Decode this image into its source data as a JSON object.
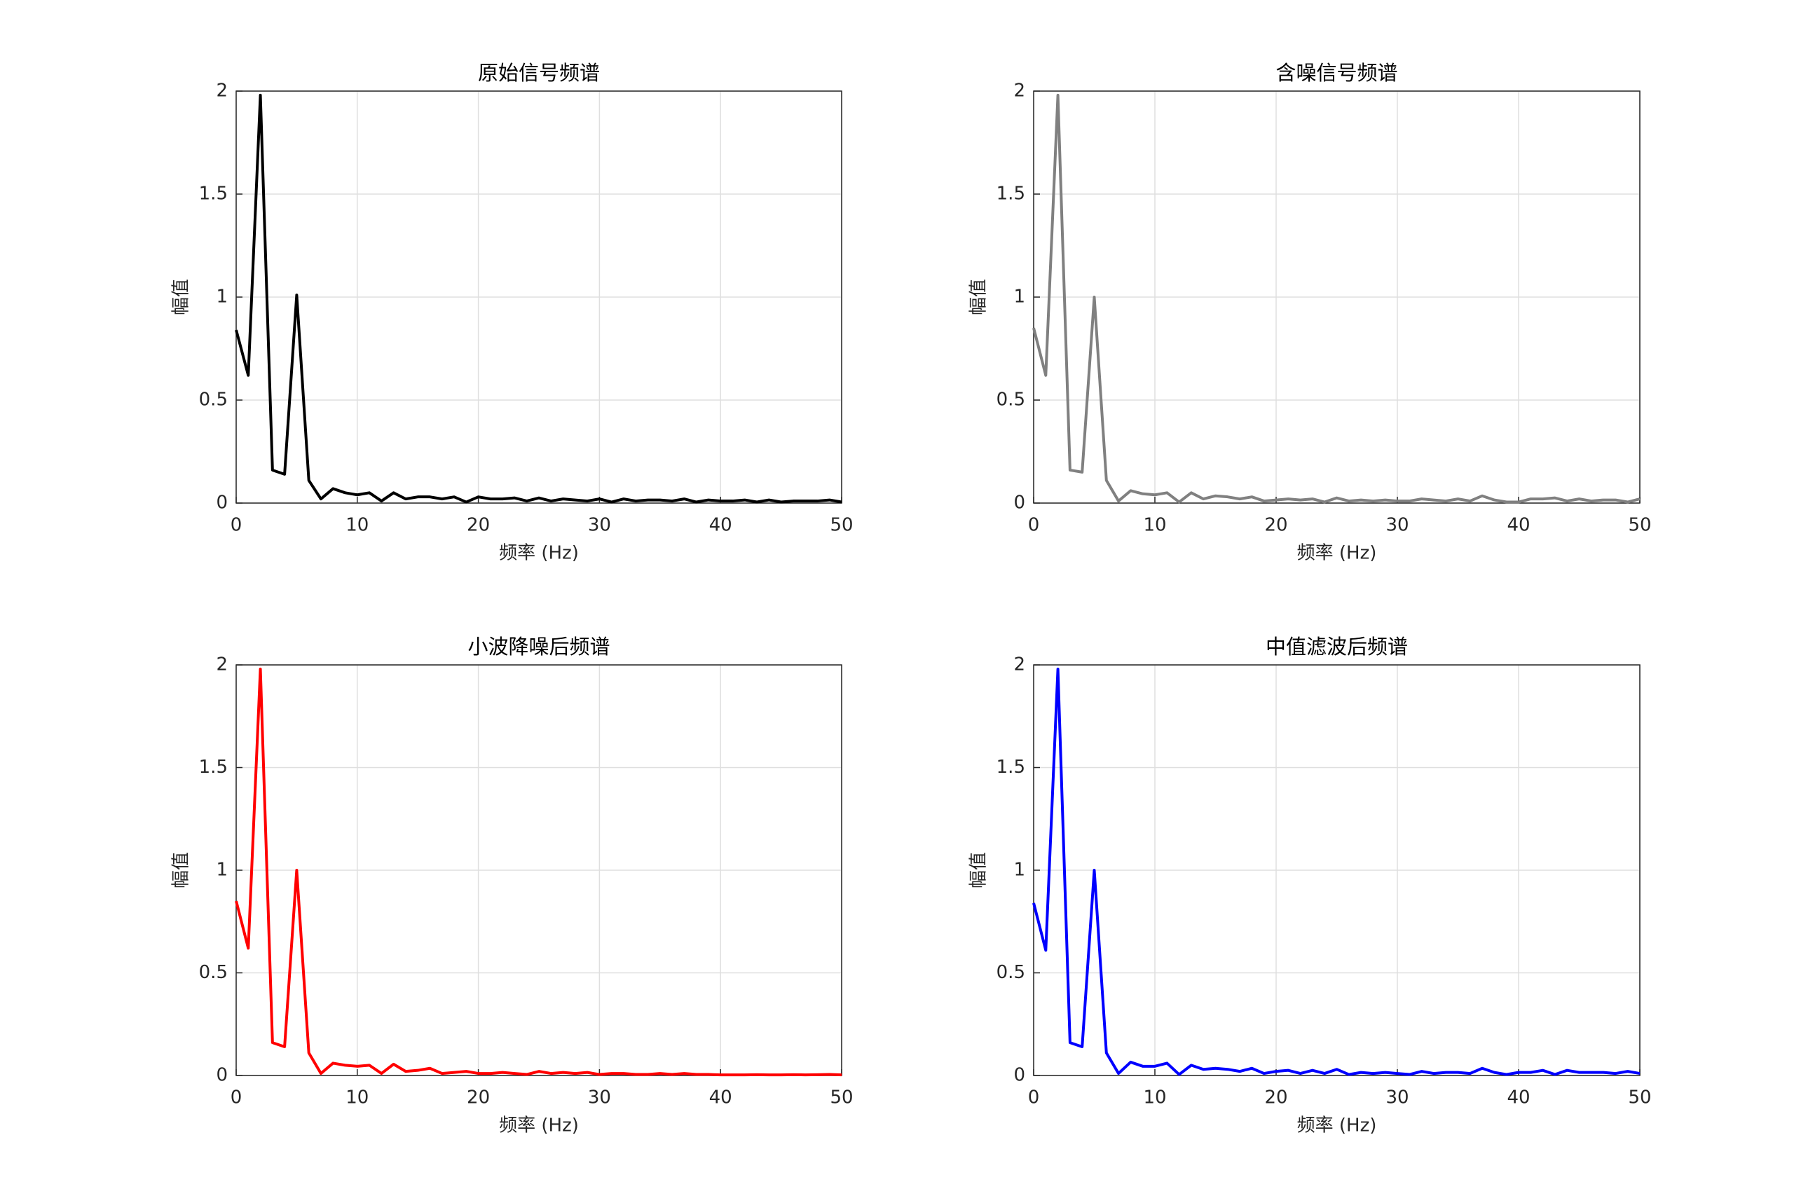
{
  "chart_data": [
    {
      "type": "line",
      "title": "原始信号频谱",
      "xlabel": "频率 (Hz)",
      "ylabel": "幅值",
      "color": "#000000",
      "x": [
        0,
        1,
        2,
        3,
        4,
        5,
        6,
        7,
        8,
        9,
        10,
        11,
        12,
        13,
        14,
        15,
        16,
        17,
        18,
        19,
        20,
        21,
        22,
        23,
        24,
        25,
        26,
        27,
        28,
        29,
        30,
        31,
        32,
        33,
        34,
        35,
        36,
        37,
        38,
        39,
        40,
        41,
        42,
        43,
        44,
        45,
        46,
        47,
        48,
        49,
        50
      ],
      "values": [
        0.84,
        0.62,
        1.98,
        0.16,
        0.14,
        1.01,
        0.11,
        0.02,
        0.07,
        0.05,
        0.04,
        0.05,
        0.01,
        0.05,
        0.02,
        0.03,
        0.03,
        0.02,
        0.03,
        0.005,
        0.03,
        0.02,
        0.02,
        0.025,
        0.01,
        0.025,
        0.01,
        0.02,
        0.015,
        0.01,
        0.02,
        0.005,
        0.02,
        0.01,
        0.015,
        0.015,
        0.01,
        0.02,
        0.005,
        0.015,
        0.01,
        0.01,
        0.015,
        0.005,
        0.015,
        0.005,
        0.01,
        0.01,
        0.01,
        0.015,
        0.005
      ],
      "xlim": [
        0,
        50
      ],
      "ylim": [
        0,
        2
      ],
      "xticks": [
        0,
        10,
        20,
        30,
        40,
        50
      ],
      "yticks": [
        0,
        0.5,
        1,
        1.5,
        2
      ],
      "grid": true
    },
    {
      "type": "line",
      "title": "含噪信号频谱",
      "xlabel": "频率 (Hz)",
      "ylabel": "幅值",
      "color": "#808080",
      "x": [
        0,
        1,
        2,
        3,
        4,
        5,
        6,
        7,
        8,
        9,
        10,
        11,
        12,
        13,
        14,
        15,
        16,
        17,
        18,
        19,
        20,
        21,
        22,
        23,
        24,
        25,
        26,
        27,
        28,
        29,
        30,
        31,
        32,
        33,
        34,
        35,
        36,
        37,
        38,
        39,
        40,
        41,
        42,
        43,
        44,
        45,
        46,
        47,
        48,
        49,
        50
      ],
      "values": [
        0.85,
        0.62,
        1.98,
        0.16,
        0.15,
        1.0,
        0.11,
        0.01,
        0.06,
        0.045,
        0.04,
        0.05,
        0.005,
        0.05,
        0.02,
        0.035,
        0.03,
        0.02,
        0.03,
        0.01,
        0.015,
        0.02,
        0.015,
        0.02,
        0.005,
        0.025,
        0.01,
        0.015,
        0.01,
        0.015,
        0.01,
        0.01,
        0.02,
        0.015,
        0.01,
        0.02,
        0.01,
        0.035,
        0.015,
        0.005,
        0.005,
        0.02,
        0.02,
        0.025,
        0.01,
        0.02,
        0.01,
        0.015,
        0.015,
        0.005,
        0.02
      ],
      "xlim": [
        0,
        50
      ],
      "ylim": [
        0,
        2
      ],
      "xticks": [
        0,
        10,
        20,
        30,
        40,
        50
      ],
      "yticks": [
        0,
        0.5,
        1,
        1.5,
        2
      ],
      "grid": true
    },
    {
      "type": "line",
      "title": "小波降噪后频谱",
      "xlabel": "频率 (Hz)",
      "ylabel": "幅值",
      "color": "#ff0000",
      "x": [
        0,
        1,
        2,
        3,
        4,
        5,
        6,
        7,
        8,
        9,
        10,
        11,
        12,
        13,
        14,
        15,
        16,
        17,
        18,
        19,
        20,
        21,
        22,
        23,
        24,
        25,
        26,
        27,
        28,
        29,
        30,
        31,
        32,
        33,
        34,
        35,
        36,
        37,
        38,
        39,
        40,
        41,
        42,
        43,
        44,
        45,
        46,
        47,
        48,
        49,
        50
      ],
      "values": [
        0.85,
        0.62,
        1.98,
        0.16,
        0.14,
        1.0,
        0.11,
        0.01,
        0.06,
        0.05,
        0.045,
        0.05,
        0.01,
        0.055,
        0.02,
        0.025,
        0.035,
        0.01,
        0.015,
        0.02,
        0.01,
        0.01,
        0.015,
        0.01,
        0.005,
        0.02,
        0.01,
        0.015,
        0.01,
        0.015,
        0.005,
        0.01,
        0.01,
        0.005,
        0.005,
        0.01,
        0.005,
        0.01,
        0.005,
        0.005,
        0.003,
        0.003,
        0.003,
        0.004,
        0.003,
        0.003,
        0.004,
        0.003,
        0.004,
        0.005,
        0.003
      ],
      "xlim": [
        0,
        50
      ],
      "ylim": [
        0,
        2
      ],
      "xticks": [
        0,
        10,
        20,
        30,
        40,
        50
      ],
      "yticks": [
        0,
        0.5,
        1,
        1.5,
        2
      ],
      "grid": true
    },
    {
      "type": "line",
      "title": "中值滤波后频谱",
      "xlabel": "频率 (Hz)",
      "ylabel": "幅值",
      "color": "#0000ff",
      "x": [
        0,
        1,
        2,
        3,
        4,
        5,
        6,
        7,
        8,
        9,
        10,
        11,
        12,
        13,
        14,
        15,
        16,
        17,
        18,
        19,
        20,
        21,
        22,
        23,
        24,
        25,
        26,
        27,
        28,
        29,
        30,
        31,
        32,
        33,
        34,
        35,
        36,
        37,
        38,
        39,
        40,
        41,
        42,
        43,
        44,
        45,
        46,
        47,
        48,
        49,
        50
      ],
      "values": [
        0.84,
        0.61,
        1.98,
        0.16,
        0.14,
        1.0,
        0.11,
        0.01,
        0.065,
        0.045,
        0.045,
        0.06,
        0.005,
        0.05,
        0.03,
        0.035,
        0.03,
        0.02,
        0.035,
        0.01,
        0.02,
        0.025,
        0.01,
        0.025,
        0.01,
        0.03,
        0.005,
        0.015,
        0.01,
        0.015,
        0.01,
        0.005,
        0.02,
        0.01,
        0.015,
        0.015,
        0.01,
        0.035,
        0.015,
        0.005,
        0.015,
        0.015,
        0.025,
        0.005,
        0.025,
        0.015,
        0.015,
        0.015,
        0.01,
        0.02,
        0.01
      ],
      "xlim": [
        0,
        50
      ],
      "ylim": [
        0,
        2
      ],
      "xticks": [
        0,
        10,
        20,
        30,
        40,
        50
      ],
      "yticks": [
        0,
        0.5,
        1,
        1.5,
        2
      ],
      "grid": true
    }
  ]
}
